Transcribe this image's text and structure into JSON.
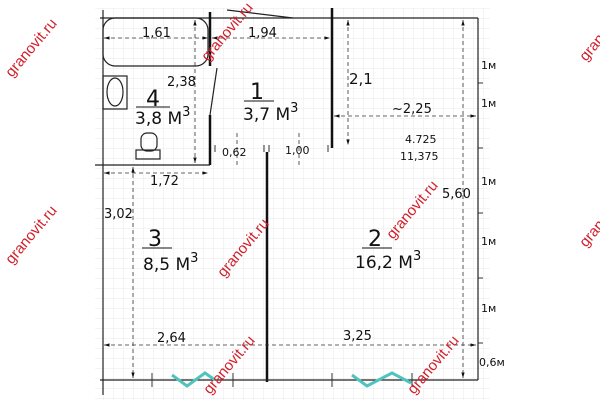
{
  "watermark": "granovit.ru",
  "rooms": [
    {
      "number": "1",
      "area": "3,7 М",
      "exp": "3"
    },
    {
      "number": "2",
      "area": "16,2 М",
      "exp": "3"
    },
    {
      "number": "3",
      "area": "8,5 М",
      "exp": "3"
    },
    {
      "number": "4",
      "area": "3,8 М",
      "exp": "3"
    }
  ],
  "dimensions": {
    "d161": "1,61",
    "d194": "1,94",
    "d238": "2,38",
    "d21": "2,1",
    "d225": "~2,25",
    "d4725": "4.725",
    "d11375": "11,375",
    "d062": "0,62",
    "d100": "1,00",
    "d172": "1,72",
    "d302": "3,02",
    "d560": "5,60",
    "d264": "2,64",
    "d325": "3,25"
  },
  "scale": [
    "1м",
    "1м",
    "1м",
    "1м",
    "1м",
    "0,6м"
  ],
  "colors": {
    "watermark": "#d21f2b",
    "window": "#4fc3bd",
    "grid": "#e3e3e3"
  }
}
